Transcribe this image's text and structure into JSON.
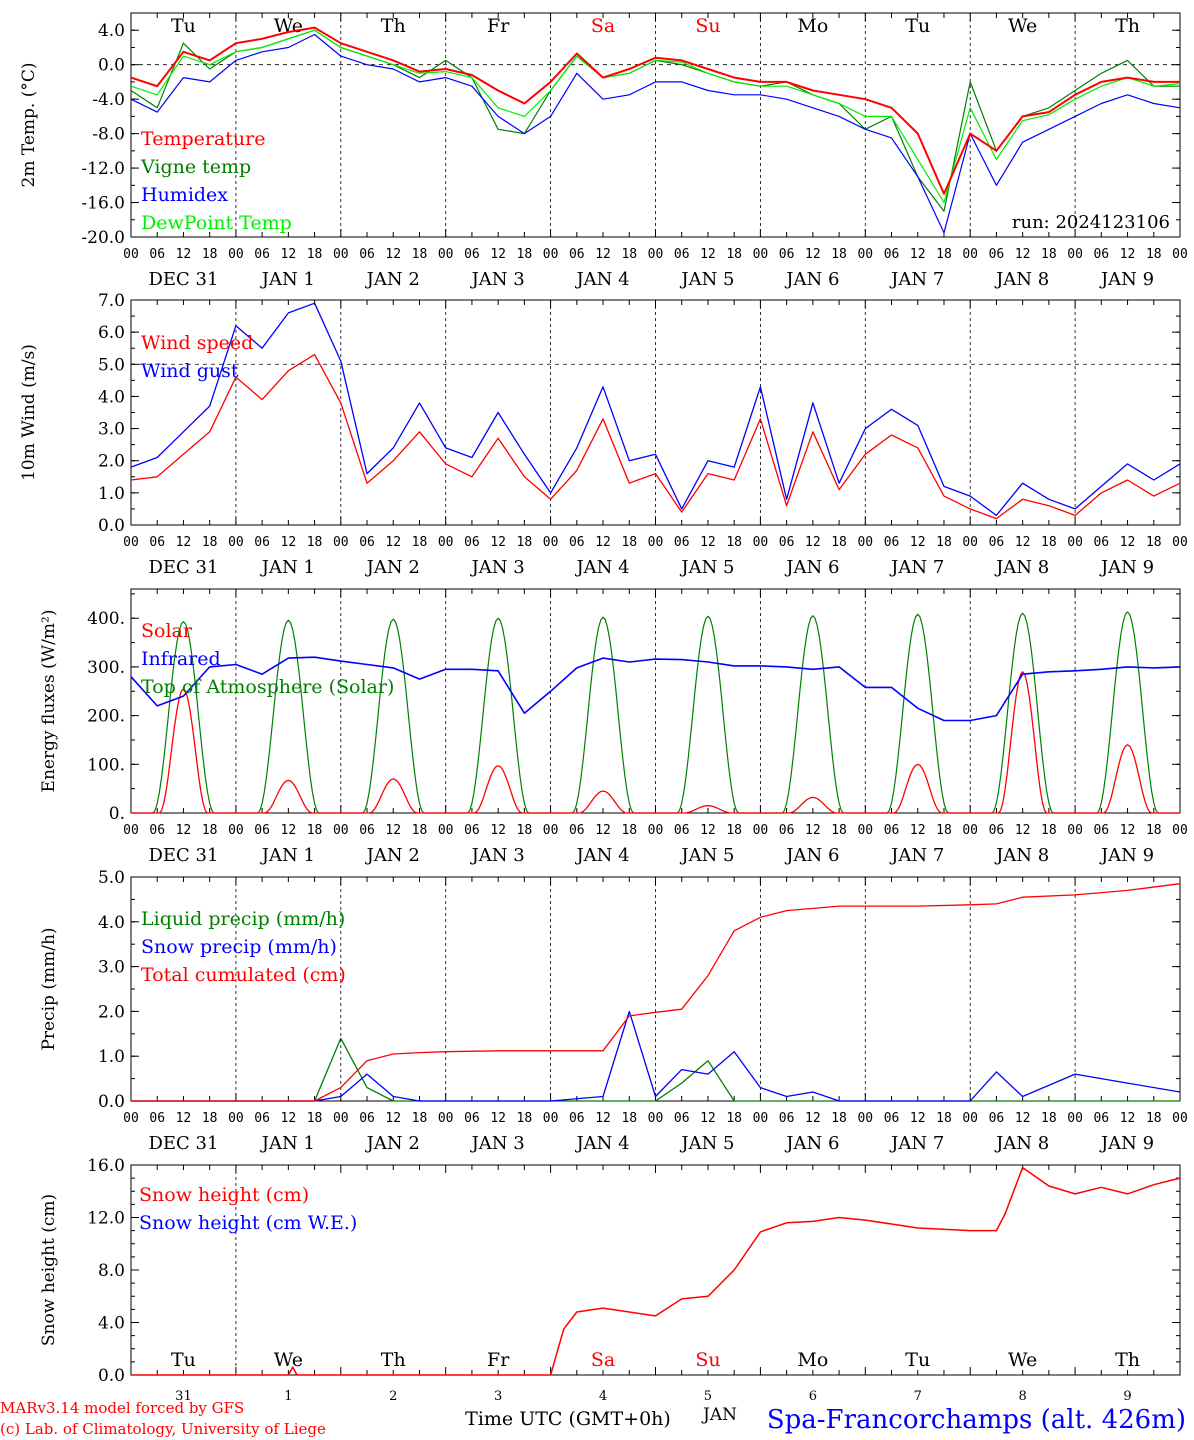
{
  "run_label": "run: 2024123106",
  "station": "Spa-Francorchamps (alt. 426m)",
  "footer_credits": [
    "MARv3.14 model forced by GFS",
    "(c) Lab. of Climatology, University of Liege"
  ],
  "time_axis_label": "Time UTC (GMT+0h)",
  "jan_label": "JAN",
  "hour_ticks": [
    "00",
    "06",
    "12",
    "18"
  ],
  "date_labels": [
    "DEC 31",
    "JAN  1",
    "JAN  2",
    "JAN  3",
    "JAN  4",
    "JAN  5",
    "JAN  6",
    "JAN  7",
    "JAN  8",
    "JAN  9"
  ],
  "weekdays": [
    "Tu",
    "We",
    "Th",
    "Fr",
    "Sa",
    "Su",
    "Mo",
    "Tu",
    "We",
    "Th"
  ],
  "weekday_colors": [
    "#000000",
    "#000000",
    "#000000",
    "#000000",
    "#ff0000",
    "#ff0000",
    "#000000",
    "#000000",
    "#000000",
    "#000000"
  ],
  "bottom_day_numbers": [
    "31",
    "1",
    "2",
    "3",
    "4",
    "5",
    "6",
    "7",
    "8",
    "9"
  ],
  "colors": {
    "red": "#ff0000",
    "green": "#008000",
    "blue": "#0000ff",
    "lime": "#00ee00",
    "grid": "#000000"
  },
  "chart_data": [
    {
      "type": "line",
      "ylabel": "2m Temp. (°C)",
      "ylim": [
        -20,
        6
      ],
      "yticks": [
        "4.0",
        "0.0",
        "-4.0",
        "-8.0",
        "-12.0",
        "-16.0",
        "-20.0"
      ],
      "x_hours": [
        0,
        6,
        12,
        18,
        24,
        30,
        36,
        42,
        48,
        54,
        60,
        66,
        72,
        78,
        84,
        90,
        96,
        102,
        108,
        114,
        120,
        126,
        132,
        138,
        144,
        150,
        156,
        162,
        168,
        174,
        180,
        186,
        192,
        198,
        204,
        210,
        216,
        222,
        228,
        234,
        240
      ],
      "series": [
        {
          "name": "Temperature",
          "color": "red",
          "values": [
            -1.5,
            -2.5,
            1.5,
            0.5,
            2.5,
            3.0,
            3.8,
            4.3,
            2.5,
            1.5,
            0.5,
            -0.8,
            -0.5,
            -1.2,
            -3.0,
            -4.5,
            -2.0,
            1.3,
            -1.5,
            -0.5,
            0.8,
            0.5,
            -0.5,
            -1.5,
            -2.0,
            -2.0,
            -3.0,
            -3.5,
            -4.0,
            -5.0,
            -8.0,
            -15.0,
            -8.0,
            -10.0,
            -6.0,
            -5.5,
            -3.5,
            -2.0,
            -1.5,
            -2.0,
            -2.0
          ]
        },
        {
          "name": "Vigne temp",
          "color": "green",
          "values": [
            -3.0,
            -5.0,
            2.5,
            -0.5,
            1.5,
            2.0,
            3.0,
            4.0,
            2.0,
            1.0,
            0.0,
            -1.5,
            0.5,
            -1.5,
            -7.5,
            -8.0,
            -3.0,
            1.0,
            -1.5,
            -1.0,
            0.5,
            0.0,
            -1.0,
            -2.0,
            -2.5,
            -2.0,
            -3.5,
            -4.5,
            -7.5,
            -6.0,
            -13.0,
            -17.0,
            -2.0,
            -10.0,
            -6.0,
            -5.0,
            -3.0,
            -1.0,
            0.5,
            -2.5,
            -2.5
          ]
        },
        {
          "name": "Humidex",
          "color": "blue",
          "values": [
            -4.0,
            -5.5,
            -1.5,
            -2.0,
            0.5,
            1.5,
            2.0,
            3.5,
            1.0,
            0.0,
            -0.5,
            -2.0,
            -1.5,
            -2.5,
            -6.0,
            -8.0,
            -6.0,
            -1.0,
            -4.0,
            -3.5,
            -2.0,
            -2.0,
            -3.0,
            -3.5,
            -3.5,
            -4.0,
            -5.0,
            -6.0,
            -7.5,
            -8.5,
            -13.0,
            -19.5,
            -8.0,
            -14.0,
            -9.0,
            -7.5,
            -6.0,
            -4.5,
            -3.5,
            -4.5,
            -5.0
          ]
        },
        {
          "name": "DewPoint Temp",
          "color": "lime",
          "values": [
            -2.5,
            -3.5,
            1.0,
            0.0,
            1.5,
            2.0,
            3.0,
            4.0,
            2.0,
            1.0,
            0.0,
            -1.0,
            -0.8,
            -1.5,
            -5.0,
            -6.0,
            -3.0,
            1.0,
            -1.5,
            -1.0,
            0.5,
            0.3,
            -1.0,
            -2.0,
            -2.5,
            -2.5,
            -3.5,
            -4.5,
            -6.0,
            -6.0,
            -11.0,
            -16.0,
            -5.0,
            -11.0,
            -6.5,
            -5.8,
            -4.0,
            -2.5,
            -1.5,
            -2.5,
            -2.2
          ]
        }
      ],
      "legend_placement": "top-left"
    },
    {
      "type": "line",
      "ylabel": "10m Wind (m/s)",
      "ylim": [
        0,
        7
      ],
      "yticks": [
        "7.0",
        "6.0",
        "5.0",
        "4.0",
        "3.0",
        "2.0",
        "1.0",
        "0.0"
      ],
      "x_hours": [
        0,
        6,
        12,
        18,
        24,
        30,
        36,
        42,
        48,
        54,
        60,
        66,
        72,
        78,
        84,
        90,
        96,
        102,
        108,
        114,
        120,
        126,
        132,
        138,
        144,
        150,
        156,
        162,
        168,
        174,
        180,
        186,
        192,
        198,
        204,
        210,
        216,
        222,
        228,
        234,
        240
      ],
      "series": [
        {
          "name": "Wind speed",
          "color": "red",
          "values": [
            1.4,
            1.5,
            2.2,
            2.9,
            4.6,
            3.9,
            4.8,
            5.3,
            3.8,
            1.3,
            2.0,
            2.9,
            1.9,
            1.5,
            2.7,
            1.5,
            0.8,
            1.7,
            3.3,
            1.3,
            1.6,
            0.4,
            1.6,
            1.4,
            3.3,
            0.6,
            2.9,
            1.1,
            2.2,
            2.8,
            2.4,
            0.9,
            0.5,
            0.2,
            0.8,
            0.6,
            0.3,
            1.0,
            1.4,
            0.9,
            1.3
          ]
        },
        {
          "name": "Wind gust",
          "color": "blue",
          "values": [
            1.8,
            2.1,
            2.9,
            3.7,
            6.2,
            5.5,
            6.6,
            6.9,
            5.1,
            1.6,
            2.4,
            3.8,
            2.4,
            2.1,
            3.5,
            2.2,
            1.0,
            2.4,
            4.3,
            2.0,
            2.2,
            0.5,
            2.0,
            1.8,
            4.3,
            0.8,
            3.8,
            1.3,
            3.0,
            3.6,
            3.1,
            1.2,
            0.9,
            0.3,
            1.3,
            0.8,
            0.5,
            1.2,
            1.9,
            1.4,
            1.9
          ]
        }
      ],
      "legend_placement": "top-left"
    },
    {
      "type": "line",
      "ylabel": "Energy fluxes (W/m²)",
      "ylim": [
        0,
        460
      ],
      "yticks": [
        "400.",
        "300.",
        "200.",
        "100.",
        "0."
      ],
      "diurnal_peaks": {
        "toa_solar": [
          393,
          396,
          398,
          400,
          402,
          404,
          405,
          408,
          410,
          413
        ],
        "solar": [
          255,
          67,
          70,
          97,
          45,
          15,
          32,
          100,
          290,
          140
        ]
      },
      "infrared": {
        "x_hours": [
          0,
          6,
          12,
          18,
          24,
          30,
          36,
          42,
          48,
          54,
          60,
          66,
          72,
          78,
          84,
          90,
          96,
          102,
          108,
          114,
          120,
          126,
          132,
          138,
          144,
          150,
          156,
          162,
          168,
          174,
          180,
          186,
          192,
          198,
          204,
          210,
          216,
          222,
          228,
          234,
          240
        ],
        "values": [
          280,
          220,
          240,
          300,
          305,
          285,
          318,
          320,
          312,
          305,
          298,
          275,
          295,
          295,
          292,
          205,
          250,
          298,
          318,
          310,
          316,
          315,
          310,
          302,
          302,
          300,
          295,
          300,
          258,
          258,
          215,
          190,
          190,
          200,
          285,
          290,
          292,
          295,
          300,
          298,
          300
        ]
      },
      "series_names": [
        "Solar",
        "Infrared",
        "Top of Atmosphere (Solar)"
      ],
      "legend_placement": "top-left"
    },
    {
      "type": "line",
      "ylabel": "Precip (mm/h)",
      "ylim": [
        0,
        5
      ],
      "yticks": [
        "5.0",
        "4.0",
        "3.0",
        "2.0",
        "1.0",
        "0.0"
      ],
      "x_hours": [
        0,
        12,
        24,
        36,
        42,
        48,
        54,
        60,
        66,
        72,
        84,
        96,
        108,
        114,
        120,
        126,
        132,
        138,
        144,
        150,
        156,
        162,
        168,
        180,
        192,
        198,
        204,
        216,
        228,
        240
      ],
      "series": [
        {
          "name": "Liquid precip (mm/h)",
          "color": "green",
          "values": [
            0,
            0,
            0,
            0,
            0,
            1.4,
            0.3,
            0,
            0,
            0,
            0,
            0,
            0,
            0,
            0,
            0.4,
            0.9,
            0,
            0,
            0,
            0,
            0,
            0,
            0,
            0,
            0,
            0,
            0,
            0,
            0
          ]
        },
        {
          "name": "Snow precip (mm/h)",
          "color": "blue",
          "values": [
            0,
            0,
            0,
            0,
            0,
            0.1,
            0.6,
            0.1,
            0,
            0,
            0,
            0,
            0.1,
            2.0,
            0.1,
            0.7,
            0.6,
            1.1,
            0.3,
            0.1,
            0.2,
            0,
            0,
            0,
            0,
            0.65,
            0.1,
            0.6,
            0.4,
            0.2
          ]
        },
        {
          "name": "Total cumulated (cm)",
          "color": "red",
          "values": [
            0,
            0,
            0,
            0,
            0,
            0.3,
            0.9,
            1.05,
            1.08,
            1.1,
            1.12,
            1.12,
            1.12,
            1.9,
            1.98,
            2.05,
            2.8,
            3.8,
            4.1,
            4.25,
            4.3,
            4.35,
            4.35,
            4.35,
            4.38,
            4.4,
            4.55,
            4.6,
            4.7,
            4.85
          ]
        }
      ],
      "legend_placement": "top-left"
    },
    {
      "type": "line",
      "ylabel": "Snow height (cm)",
      "ylim": [
        0,
        16
      ],
      "yticks": [
        "16.0",
        "12.0",
        "8.0",
        "4.0",
        "0.0"
      ],
      "x_hours": [
        0,
        24,
        36,
        37,
        38,
        48,
        60,
        72,
        84,
        96,
        99,
        102,
        108,
        120,
        126,
        132,
        138,
        144,
        150,
        156,
        162,
        168,
        180,
        192,
        198,
        200,
        204,
        210,
        216,
        222,
        228,
        234,
        240
      ],
      "series": [
        {
          "name": "Snow height (cm)",
          "color": "red",
          "values": [
            0,
            0,
            0,
            0.6,
            0,
            0,
            0,
            0,
            0,
            0,
            3.5,
            4.8,
            5.1,
            4.5,
            5.8,
            6.0,
            8.0,
            10.9,
            11.6,
            11.7,
            12.0,
            11.8,
            11.2,
            11.0,
            11.0,
            12.3,
            15.8,
            14.4,
            13.8,
            14.3,
            13.8,
            14.5,
            15.0
          ]
        },
        {
          "name": "Snow height (cm W.E.)",
          "color": "blue",
          "values": []
        }
      ],
      "legend_placement": "top-left"
    }
  ]
}
